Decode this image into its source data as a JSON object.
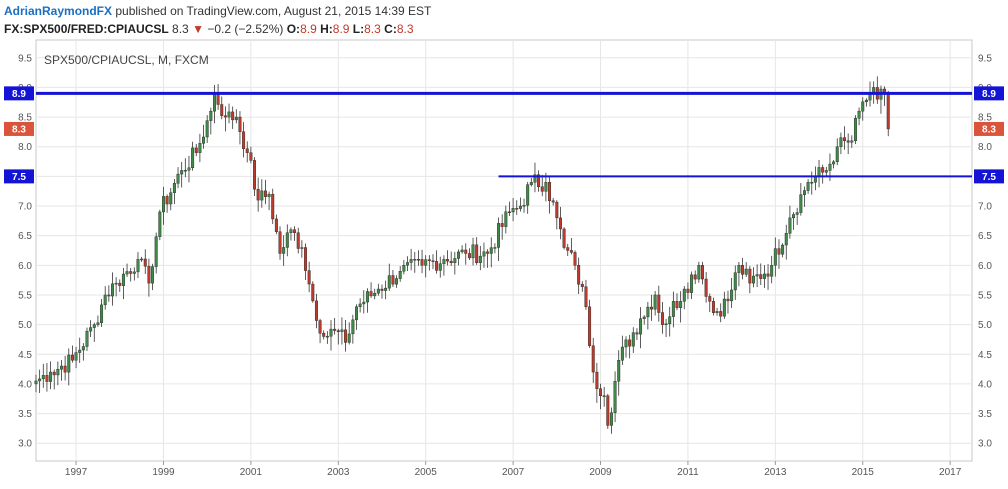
{
  "header": {
    "author": "AdrianRaymondFX",
    "published_text": "published on TradingView.com, August 21, 2015 14:39 EST",
    "symbol": "FX:SPX500/FRED:CPIAUCSL",
    "last": "8.3",
    "change_arrow": "▼",
    "change": "−0.2 (−2.52%)",
    "o_label": "O:",
    "o_val": "8.9",
    "h_label": "H:",
    "h_val": "8.9",
    "l_label": "L:",
    "l_val": "8.3",
    "c_label": "C:",
    "c_val": "8.3"
  },
  "colors": {
    "up": "#3e8a46",
    "down": "#bd3b2c",
    "hline": "#1414d6",
    "price_tag": "#d9543a",
    "grid": "#e6e6e6",
    "axis_text": "#555555"
  },
  "chart_data": {
    "type": "candlestick",
    "title": "SPX500/CPIAUCSL, M, FXCM",
    "x_ticks": [
      "1997",
      "1999",
      "2001",
      "2003",
      "2005",
      "2007",
      "2009",
      "2011",
      "2013",
      "2015",
      "2017"
    ],
    "y_ticks": [
      "3.0",
      "3.5",
      "4.0",
      "4.5",
      "5.0",
      "5.5",
      "6.0",
      "6.5",
      "7.0",
      "7.5",
      "8.0",
      "8.5",
      "9.0",
      "9.5"
    ],
    "ylim": [
      2.7,
      9.8
    ],
    "xlim": [
      "1996-02",
      "2017-07"
    ],
    "grid": true,
    "horizontal_lines": [
      {
        "value": 8.9,
        "label": "8.9",
        "from": "1996-02"
      },
      {
        "value": 7.5,
        "label": "7.5",
        "from": "2006-09"
      }
    ],
    "last_price": {
      "value": 8.3,
      "label": "8.3"
    },
    "approx_close_path": [
      [
        "1996-02",
        4.05
      ],
      [
        "1996-06",
        4.2
      ],
      [
        "1996-12",
        4.4
      ],
      [
        "1997-06",
        5.0
      ],
      [
        "1997-09",
        5.5
      ],
      [
        "1997-12",
        5.7
      ],
      [
        "1998-06",
        6.1
      ],
      [
        "1998-09",
        5.7
      ],
      [
        "1998-12",
        6.9
      ],
      [
        "1999-06",
        7.6
      ],
      [
        "1999-10",
        7.9
      ],
      [
        "2000-02",
        8.6
      ],
      [
        "2000-03",
        8.9
      ],
      [
        "2000-06",
        8.5
      ],
      [
        "2000-09",
        8.5
      ],
      [
        "2000-12",
        7.9
      ],
      [
        "2001-03",
        7.1
      ],
      [
        "2001-06",
        7.2
      ],
      [
        "2001-09",
        6.2
      ],
      [
        "2001-12",
        6.6
      ],
      [
        "2002-03",
        6.3
      ],
      [
        "2002-06",
        5.4
      ],
      [
        "2002-09",
        4.8
      ],
      [
        "2002-12",
        4.9
      ],
      [
        "2003-03",
        4.7
      ],
      [
        "2003-06",
        5.3
      ],
      [
        "2003-12",
        5.6
      ],
      [
        "2004-06",
        5.9
      ],
      [
        "2004-12",
        6.0
      ],
      [
        "2005-06",
        6.1
      ],
      [
        "2005-12",
        6.2
      ],
      [
        "2006-06",
        6.2
      ],
      [
        "2006-12",
        6.9
      ],
      [
        "2007-03",
        7.0
      ],
      [
        "2007-06",
        7.4
      ],
      [
        "2007-10",
        7.4
      ],
      [
        "2008-01",
        6.8
      ],
      [
        "2008-03",
        6.3
      ],
      [
        "2008-06",
        6.0
      ],
      [
        "2008-09",
        5.3
      ],
      [
        "2008-11",
        4.2
      ],
      [
        "2009-02",
        3.8
      ],
      [
        "2009-03",
        3.3
      ],
      [
        "2009-06",
        4.4
      ],
      [
        "2009-12",
        5.1
      ],
      [
        "2010-04",
        5.5
      ],
      [
        "2010-06",
        5.0
      ],
      [
        "2010-12",
        5.6
      ],
      [
        "2011-04",
        6.0
      ],
      [
        "2011-08",
        5.2
      ],
      [
        "2011-12",
        5.4
      ],
      [
        "2012-03",
        6.0
      ],
      [
        "2012-06",
        5.7
      ],
      [
        "2012-12",
        6.0
      ],
      [
        "2013-05",
        6.8
      ],
      [
        "2013-10",
        7.4
      ],
      [
        "2014-03",
        7.6
      ],
      [
        "2014-06",
        8.0
      ],
      [
        "2014-10",
        8.1
      ],
      [
        "2014-12",
        8.6
      ],
      [
        "2015-03",
        8.9
      ],
      [
        "2015-05",
        8.8
      ],
      [
        "2015-07",
        8.9
      ],
      [
        "2015-08",
        8.3
      ]
    ]
  }
}
